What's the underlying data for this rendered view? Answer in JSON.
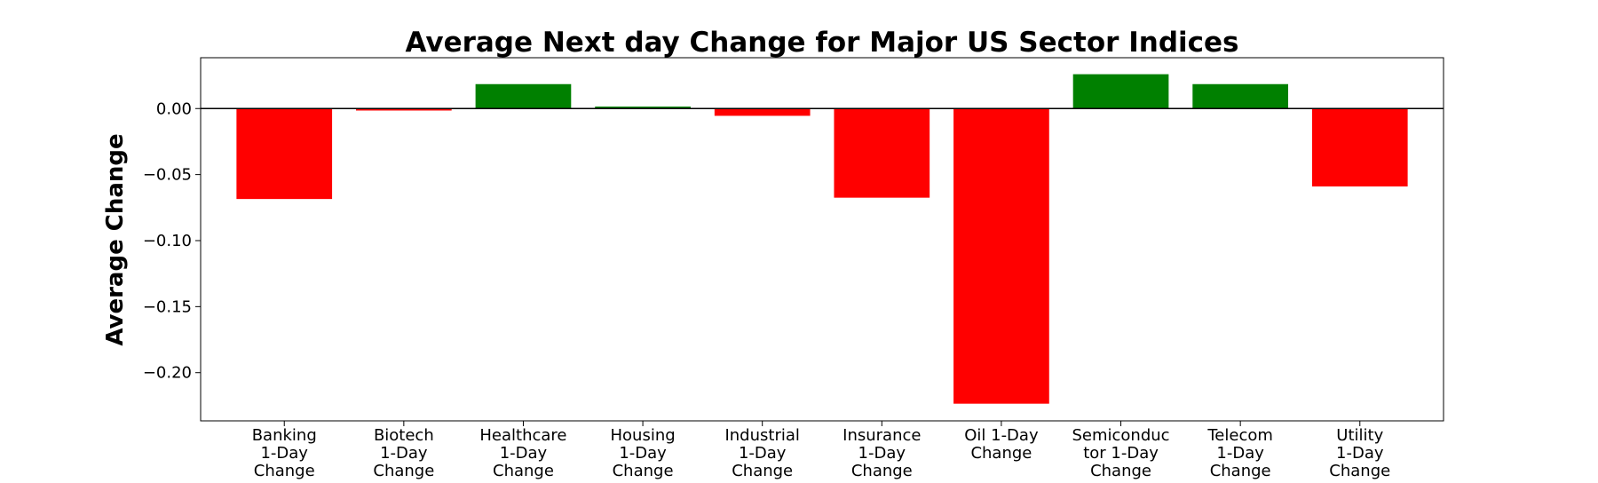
{
  "chart_data": {
    "type": "bar",
    "title": "Average Next day Change for Major US Sector Indices",
    "xlabel": "",
    "ylabel": "Average Change",
    "categories": [
      [
        "Banking",
        "1-Day",
        "Change"
      ],
      [
        "Biotech",
        "1-Day",
        "Change"
      ],
      [
        "Healthcare",
        "1-Day",
        "Change"
      ],
      [
        "Housing",
        "1-Day",
        "Change"
      ],
      [
        "Industrial",
        "1-Day",
        "Change"
      ],
      [
        "Insurance",
        "1-Day",
        "Change"
      ],
      [
        "Oil 1-Day",
        "Change"
      ],
      [
        "Semiconduc",
        "tor 1-Day",
        "Change"
      ],
      [
        "Telecom",
        "1-Day",
        "Change"
      ],
      [
        "Utility",
        "1-Day",
        "Change"
      ]
    ],
    "values": [
      -0.0685,
      -0.0015,
      0.0185,
      0.0015,
      -0.0055,
      -0.0675,
      -0.2235,
      0.026,
      0.0185,
      -0.059
    ],
    "ylim": [
      -0.2365,
      0.0385
    ],
    "yticks": [
      0.0,
      -0.05,
      -0.1,
      -0.15,
      -0.2
    ],
    "ytick_labels": [
      "0.00",
      "−0.05",
      "−0.10",
      "−0.15",
      "−0.20"
    ],
    "colors": {
      "positive": "#008000",
      "negative": "#ff0000",
      "zero_line": "#000000"
    },
    "grid": false,
    "legend": "none"
  }
}
